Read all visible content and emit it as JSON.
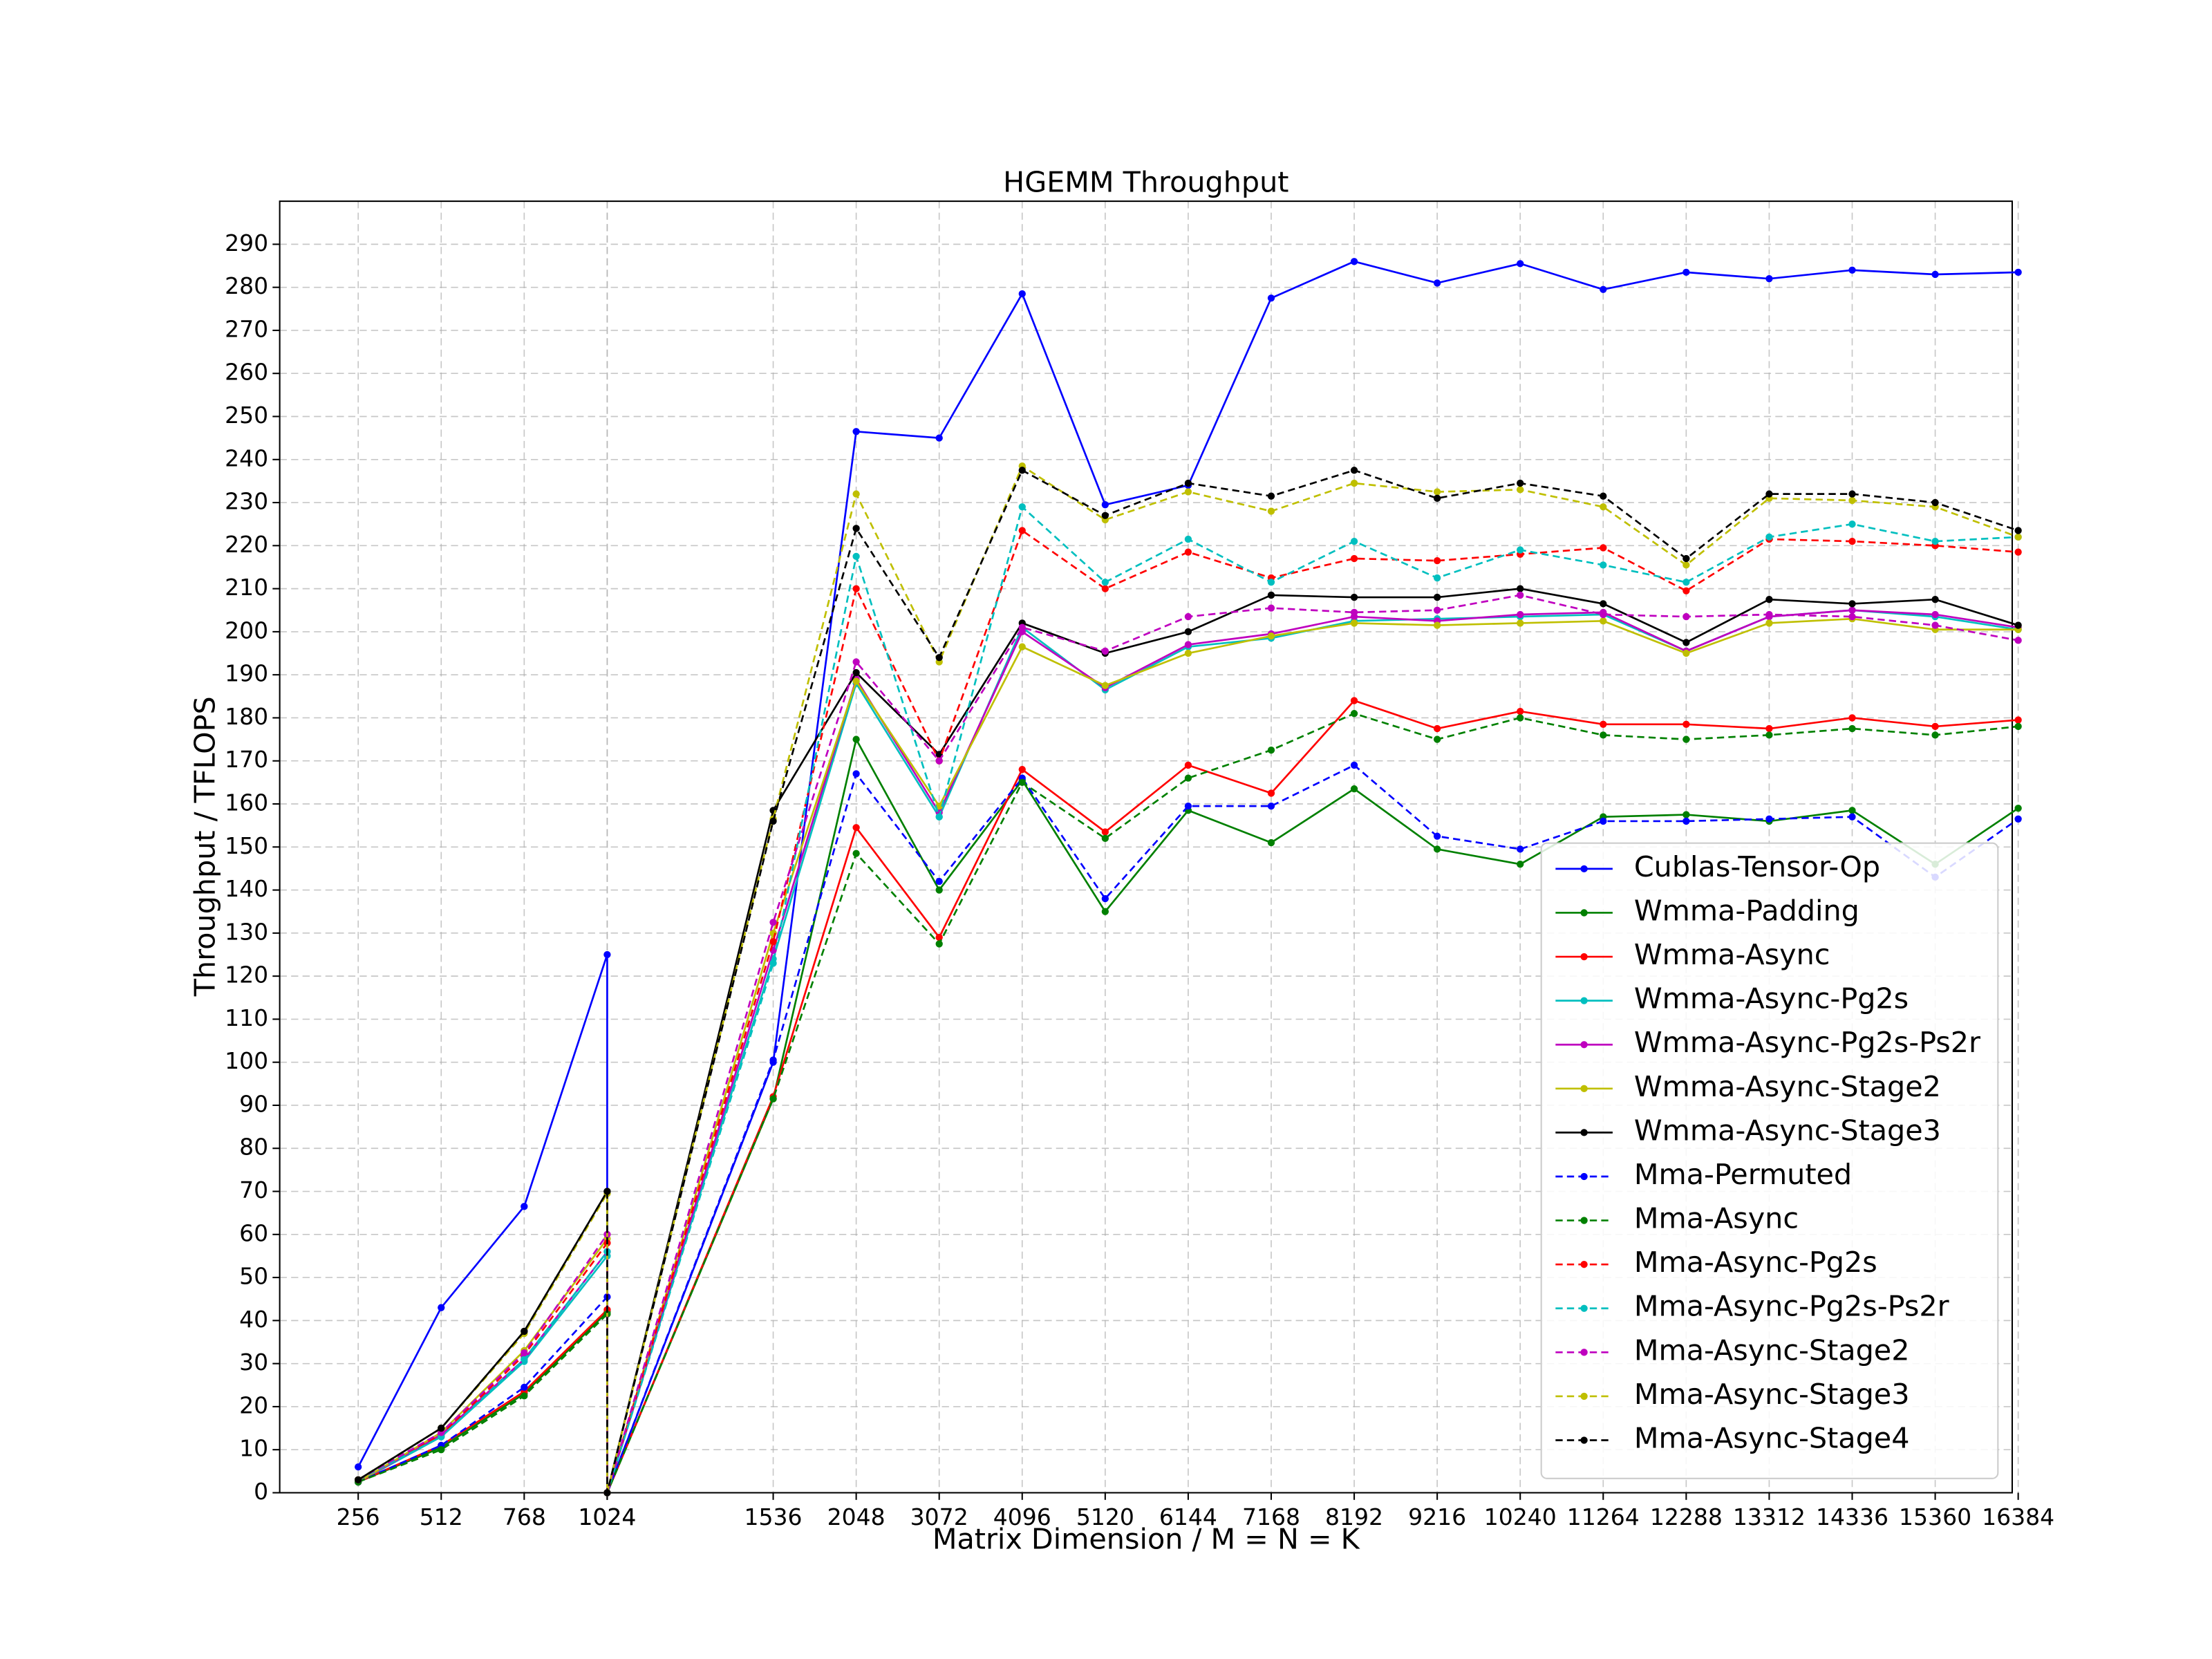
{
  "chart_data": {
    "type": "line",
    "title": "HGEMM Throughput",
    "xlabel": "Matrix Dimension / M = N = K",
    "ylabel": "Throughput / TFLOPS",
    "categories": [
      "256",
      "512",
      "768",
      "1024",
      "1024",
      "1536",
      "2048",
      "3072",
      "4096",
      "5120",
      "6144",
      "7168",
      "8192",
      "9216",
      "10240",
      "11264",
      "12288",
      "13312",
      "14336",
      "15360",
      "16384"
    ],
    "ylim": [
      0,
      300
    ],
    "yticks": [
      0,
      10,
      20,
      30,
      40,
      50,
      60,
      70,
      80,
      90,
      100,
      110,
      120,
      130,
      140,
      150,
      160,
      170,
      180,
      190,
      200,
      210,
      220,
      230,
      240,
      250,
      260,
      270,
      280,
      290
    ],
    "grid": true,
    "legend": "lower right",
    "series": [
      {
        "name": "Cublas-Tensor-Op",
        "color": "#0000ff",
        "linestyle": "solid",
        "values": [
          6,
          43,
          66.5,
          125,
          0,
          100,
          246.5,
          245,
          278.5,
          229.5,
          234,
          277.5,
          286,
          281,
          285.5,
          279.5,
          283.5,
          282,
          284,
          283,
          283.5
        ]
      },
      {
        "name": "Wmma-Padding",
        "color": "#008000",
        "linestyle": "solid",
        "values": [
          2.5,
          10.5,
          23,
          42,
          0,
          91.5,
          175,
          140,
          165.5,
          135,
          158.5,
          151,
          163.5,
          149.5,
          146,
          157,
          157.5,
          156,
          158.5,
          146,
          159
        ]
      },
      {
        "name": "Wmma-Async",
        "color": "#ff0000",
        "linestyle": "solid",
        "values": [
          2.5,
          11,
          23.5,
          42.5,
          0,
          92,
          154.5,
          129,
          168,
          153.5,
          169,
          162.5,
          184,
          177.5,
          181.5,
          178.5,
          178.5,
          177.5,
          180,
          178,
          179.5
        ]
      },
      {
        "name": "Wmma-Async-Pg2s",
        "color": "#00bfbf",
        "linestyle": "solid",
        "values": [
          2.5,
          13,
          30.5,
          55,
          0,
          124,
          188,
          157,
          201,
          186.5,
          196.5,
          198.5,
          202.5,
          203,
          203.5,
          204,
          195.5,
          203.5,
          205,
          203.5,
          200.5
        ]
      },
      {
        "name": "Wmma-Async-Pg2s-Ps2r",
        "color": "#bf00bf",
        "linestyle": "solid",
        "values": [
          2.5,
          13.5,
          31,
          56,
          0,
          126,
          189,
          158,
          200,
          187,
          197,
          199.5,
          203.5,
          202.5,
          204,
          204.5,
          195.5,
          203.5,
          205,
          204,
          201
        ]
      },
      {
        "name": "Wmma-Async-Stage2",
        "color": "#bfbf00",
        "linestyle": "solid",
        "values": [
          2.5,
          14,
          33,
          59,
          0,
          130,
          188.5,
          159.5,
          196.5,
          187.5,
          195,
          199,
          202,
          201.5,
          202,
          202.5,
          195,
          202,
          203,
          200.5,
          200.5
        ]
      },
      {
        "name": "Wmma-Async-Stage3",
        "color": "#000000",
        "linestyle": "solid",
        "values": [
          3,
          15,
          37.5,
          70,
          0,
          158.5,
          190.5,
          171.5,
          202,
          195,
          200,
          208.5,
          208,
          208,
          210,
          206.5,
          197.5,
          207.5,
          206.5,
          207.5,
          201.5
        ]
      },
      {
        "name": "Mma-Permuted",
        "color": "#0000ff",
        "linestyle": "dashed",
        "values": [
          2.5,
          11,
          24.5,
          45.5,
          0,
          100.5,
          167,
          142,
          166,
          138,
          159.5,
          159.5,
          169,
          152.5,
          149.5,
          156,
          156,
          156.5,
          157,
          143,
          156.5
        ]
      },
      {
        "name": "Mma-Async",
        "color": "#008000",
        "linestyle": "dashed",
        "values": [
          2.5,
          10,
          22.5,
          41.5,
          0,
          91.5,
          148.5,
          127.5,
          165,
          152,
          166,
          172.5,
          181,
          175,
          180,
          176,
          175,
          176,
          177.5,
          176,
          178
        ]
      },
      {
        "name": "Mma-Async-Pg2s",
        "color": "#ff0000",
        "linestyle": "dashed",
        "values": [
          3,
          13.5,
          32,
          58,
          0,
          128,
          210,
          170,
          223.5,
          210,
          218.5,
          212.5,
          217,
          216.5,
          218,
          219.5,
          209.5,
          221.5,
          221,
          220,
          218.5
        ]
      },
      {
        "name": "Mma-Async-Pg2s-Ps2r",
        "color": "#00bfbf",
        "linestyle": "dashed",
        "values": [
          3,
          13,
          31,
          56,
          0,
          123,
          217.5,
          157,
          229,
          211.5,
          221.5,
          211.5,
          221,
          212.5,
          219,
          215.5,
          211.5,
          222,
          225,
          221,
          222
        ]
      },
      {
        "name": "Mma-Async-Stage2",
        "color": "#bf00bf",
        "linestyle": "dashed",
        "values": [
          3,
          14,
          32.5,
          60,
          0,
          132.5,
          193,
          170,
          201,
          195.5,
          203.5,
          205.5,
          204.5,
          205,
          208.5,
          204,
          203.5,
          204,
          203.5,
          201.5,
          198
        ]
      },
      {
        "name": "Mma-Async-Stage3",
        "color": "#bfbf00",
        "linestyle": "dashed",
        "values": [
          3,
          15,
          37,
          69.5,
          0,
          156.5,
          232,
          193,
          238.5,
          226,
          232.5,
          228,
          234.5,
          232.5,
          233,
          229,
          215.5,
          231,
          230.5,
          229,
          222
        ]
      },
      {
        "name": "Mma-Async-Stage4",
        "color": "#000000",
        "linestyle": "dashed",
        "values": [
          3,
          15,
          37.5,
          70,
          0,
          156,
          224,
          194,
          237.5,
          227,
          234.5,
          231.5,
          237.5,
          231,
          234.5,
          231.5,
          217,
          232,
          232,
          230,
          223.5
        ]
      }
    ]
  }
}
